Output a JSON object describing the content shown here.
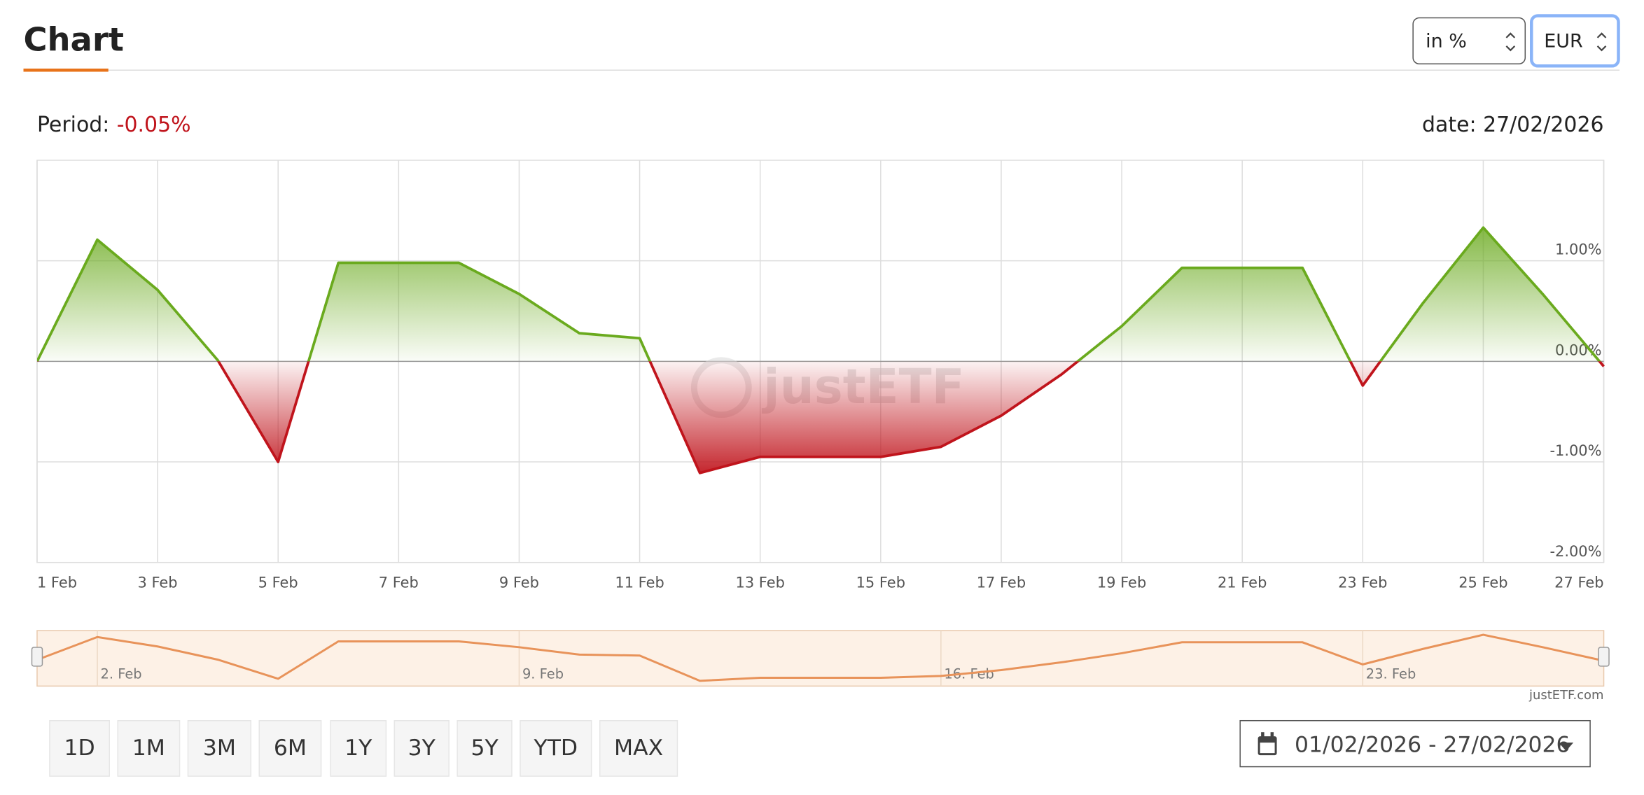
{
  "header": {
    "title": "Chart",
    "unit_select": "in %",
    "currency_select": "EUR"
  },
  "summary": {
    "period_label": "Period:",
    "period_value": "-0.05%",
    "date": "date: 27/02/2026"
  },
  "chart_data": {
    "type": "area",
    "categories": [
      "1 Feb",
      null,
      "3 Feb",
      null,
      "5 Feb",
      null,
      "7 Feb",
      null,
      "9 Feb",
      null,
      "11 Feb",
      null,
      "13 Feb",
      null,
      "15 Feb",
      null,
      "17 Feb",
      null,
      "19 Feb",
      null,
      "21 Feb",
      null,
      "23 Feb",
      null,
      "25 Feb",
      null,
      "27 Feb"
    ],
    "values": [
      0.0,
      1.21,
      0.71,
      0.01,
      -1.0,
      0.98,
      0.98,
      0.98,
      0.67,
      0.28,
      0.23,
      -1.11,
      -0.95,
      -0.95,
      -0.95,
      -0.85,
      -0.54,
      -0.13,
      0.35,
      0.93,
      0.93,
      0.93,
      -0.24,
      0.58,
      1.33,
      0.66,
      -0.05
    ],
    "ylim": [
      -2,
      2
    ],
    "yticks": [
      {
        "value": -2,
        "label": "-2.00%"
      },
      {
        "value": -1,
        "label": "-1.00%"
      },
      {
        "value": 0,
        "label": "0.00%"
      },
      {
        "value": 1,
        "label": "1.00%"
      }
    ],
    "positive_color": "#6aaa1e",
    "negative_color": "#c0141c",
    "grid": true,
    "watermark": "justETF"
  },
  "navigator": {
    "labels": [
      "2. Feb",
      "9. Feb",
      "16. Feb",
      "23. Feb"
    ],
    "color": "#e8935a",
    "credit": "justETF.com"
  },
  "periods": [
    "1D",
    "1M",
    "3M",
    "6M",
    "1Y",
    "3Y",
    "5Y",
    "YTD",
    "MAX"
  ],
  "date_range": "01/02/2026 - 27/02/2026"
}
